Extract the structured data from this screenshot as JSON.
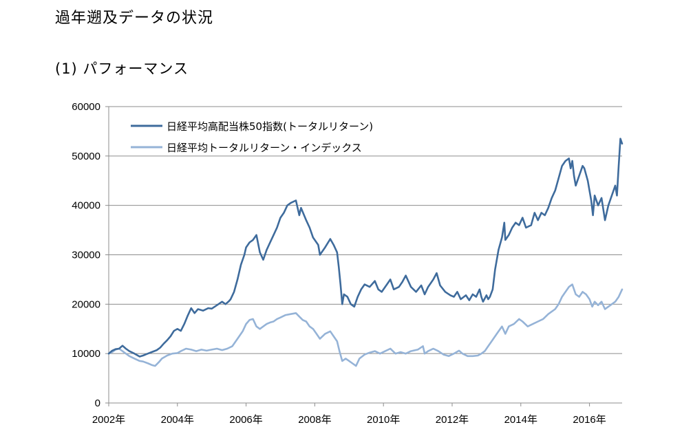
{
  "page": {
    "title": "過年遡及データの状況",
    "section": "(1) パフォーマンス"
  },
  "chart_data": {
    "type": "line",
    "title": "",
    "xlabel": "",
    "ylabel": "",
    "ylim": [
      0,
      60000
    ],
    "yticks": [
      0,
      10000,
      20000,
      30000,
      40000,
      50000,
      60000
    ],
    "xlim": [
      2002.0,
      2016.95
    ],
    "xticks": [
      2002,
      2004,
      2006,
      2008,
      2010,
      2012,
      2014,
      2016
    ],
    "xtick_labels": [
      "2002年",
      "2004年",
      "2006年",
      "2008年",
      "2010年",
      "2012年",
      "2014年",
      "2016年"
    ],
    "grid": "horizontal",
    "legend_position": "top-left",
    "series": [
      {
        "name": "日経平均高配当株50指数(トータルリターン)",
        "color": "#3e6b9c",
        "points": [
          [
            2002.0,
            10000
          ],
          [
            2002.1,
            10600
          ],
          [
            2002.2,
            10900
          ],
          [
            2002.3,
            11000
          ],
          [
            2002.4,
            11600
          ],
          [
            2002.5,
            11000
          ],
          [
            2002.6,
            10500
          ],
          [
            2002.75,
            10000
          ],
          [
            2002.9,
            9400
          ],
          [
            2003.0,
            9600
          ],
          [
            2003.1,
            9900
          ],
          [
            2003.25,
            10300
          ],
          [
            2003.4,
            10700
          ],
          [
            2003.5,
            11200
          ],
          [
            2003.6,
            12000
          ],
          [
            2003.7,
            12700
          ],
          [
            2003.8,
            13500
          ],
          [
            2003.9,
            14600
          ],
          [
            2004.0,
            15000
          ],
          [
            2004.1,
            14600
          ],
          [
            2004.2,
            16000
          ],
          [
            2004.3,
            17700
          ],
          [
            2004.4,
            19200
          ],
          [
            2004.5,
            18200
          ],
          [
            2004.6,
            19000
          ],
          [
            2004.75,
            18700
          ],
          [
            2004.9,
            19200
          ],
          [
            2005.0,
            19100
          ],
          [
            2005.15,
            19800
          ],
          [
            2005.3,
            20500
          ],
          [
            2005.4,
            20000
          ],
          [
            2005.5,
            20600
          ],
          [
            2005.55,
            21000
          ],
          [
            2005.65,
            22500
          ],
          [
            2005.75,
            25000
          ],
          [
            2005.85,
            28000
          ],
          [
            2005.95,
            30000
          ],
          [
            2006.0,
            31500
          ],
          [
            2006.1,
            32500
          ],
          [
            2006.2,
            33000
          ],
          [
            2006.3,
            34000
          ],
          [
            2006.4,
            30500
          ],
          [
            2006.5,
            29000
          ],
          [
            2006.6,
            31000
          ],
          [
            2006.7,
            32500
          ],
          [
            2006.8,
            34000
          ],
          [
            2006.9,
            35500
          ],
          [
            2007.0,
            37500
          ],
          [
            2007.1,
            38500
          ],
          [
            2007.2,
            40000
          ],
          [
            2007.3,
            40500
          ],
          [
            2007.45,
            41000
          ],
          [
            2007.55,
            38000
          ],
          [
            2007.6,
            39500
          ],
          [
            2007.75,
            37000
          ],
          [
            2007.85,
            35500
          ],
          [
            2007.95,
            33500
          ],
          [
            2008.1,
            32000
          ],
          [
            2008.15,
            30000
          ],
          [
            2008.3,
            31500
          ],
          [
            2008.45,
            33200
          ],
          [
            2008.55,
            32000
          ],
          [
            2008.65,
            30500
          ],
          [
            2008.7,
            27500
          ],
          [
            2008.75,
            24000
          ],
          [
            2008.8,
            20000
          ],
          [
            2008.85,
            22000
          ],
          [
            2008.95,
            21500
          ],
          [
            2009.05,
            20000
          ],
          [
            2009.15,
            19500
          ],
          [
            2009.25,
            21500
          ],
          [
            2009.35,
            23000
          ],
          [
            2009.45,
            24000
          ],
          [
            2009.6,
            23500
          ],
          [
            2009.75,
            24700
          ],
          [
            2009.85,
            23000
          ],
          [
            2009.95,
            22500
          ],
          [
            2010.1,
            24000
          ],
          [
            2010.2,
            25000
          ],
          [
            2010.3,
            23000
          ],
          [
            2010.45,
            23500
          ],
          [
            2010.55,
            24500
          ],
          [
            2010.65,
            25800
          ],
          [
            2010.8,
            23500
          ],
          [
            2010.95,
            22500
          ],
          [
            2011.1,
            23800
          ],
          [
            2011.2,
            22000
          ],
          [
            2011.3,
            23500
          ],
          [
            2011.45,
            25000
          ],
          [
            2011.55,
            26300
          ],
          [
            2011.65,
            23800
          ],
          [
            2011.8,
            22500
          ],
          [
            2011.95,
            21800
          ],
          [
            2012.05,
            21500
          ],
          [
            2012.15,
            22500
          ],
          [
            2012.25,
            21000
          ],
          [
            2012.4,
            21800
          ],
          [
            2012.5,
            20800
          ],
          [
            2012.6,
            22000
          ],
          [
            2012.7,
            21500
          ],
          [
            2012.8,
            23000
          ],
          [
            2012.85,
            21500
          ],
          [
            2012.9,
            20500
          ],
          [
            2013.0,
            21800
          ],
          [
            2013.05,
            21000
          ],
          [
            2013.1,
            21500
          ],
          [
            2013.18,
            23000
          ],
          [
            2013.25,
            27000
          ],
          [
            2013.35,
            31000
          ],
          [
            2013.45,
            33500
          ],
          [
            2013.52,
            36500
          ],
          [
            2013.55,
            33000
          ],
          [
            2013.65,
            34000
          ],
          [
            2013.75,
            35500
          ],
          [
            2013.85,
            36500
          ],
          [
            2013.95,
            36000
          ],
          [
            2014.05,
            37500
          ],
          [
            2014.15,
            35500
          ],
          [
            2014.3,
            36000
          ],
          [
            2014.4,
            38500
          ],
          [
            2014.5,
            37000
          ],
          [
            2014.6,
            38500
          ],
          [
            2014.7,
            38000
          ],
          [
            2014.8,
            39500
          ],
          [
            2014.9,
            41500
          ],
          [
            2015.0,
            43000
          ],
          [
            2015.1,
            45500
          ],
          [
            2015.2,
            48000
          ],
          [
            2015.3,
            49000
          ],
          [
            2015.4,
            49500
          ],
          [
            2015.45,
            47500
          ],
          [
            2015.5,
            49000
          ],
          [
            2015.55,
            46000
          ],
          [
            2015.6,
            44000
          ],
          [
            2015.7,
            46000
          ],
          [
            2015.8,
            48000
          ],
          [
            2015.85,
            47500
          ],
          [
            2015.95,
            45000
          ],
          [
            2016.05,
            41000
          ],
          [
            2016.1,
            38000
          ],
          [
            2016.15,
            42000
          ],
          [
            2016.25,
            40000
          ],
          [
            2016.35,
            41500
          ],
          [
            2016.45,
            37000
          ],
          [
            2016.55,
            40000
          ],
          [
            2016.65,
            42000
          ],
          [
            2016.75,
            44000
          ],
          [
            2016.8,
            42000
          ],
          [
            2016.85,
            48000
          ],
          [
            2016.9,
            53500
          ],
          [
            2016.95,
            52500
          ]
        ]
      },
      {
        "name": "日経平均トータルリターン・インデックス",
        "color": "#95b3d7",
        "points": [
          [
            2002.0,
            10000
          ],
          [
            2002.1,
            10300
          ],
          [
            2002.2,
            10800
          ],
          [
            2002.3,
            11000
          ],
          [
            2002.4,
            10500
          ],
          [
            2002.5,
            10000
          ],
          [
            2002.6,
            9500
          ],
          [
            2002.75,
            9000
          ],
          [
            2002.9,
            8500
          ],
          [
            2003.0,
            8400
          ],
          [
            2003.15,
            8000
          ],
          [
            2003.25,
            7700
          ],
          [
            2003.35,
            7500
          ],
          [
            2003.45,
            8200
          ],
          [
            2003.55,
            9000
          ],
          [
            2003.7,
            9600
          ],
          [
            2003.85,
            10000
          ],
          [
            2004.0,
            10100
          ],
          [
            2004.1,
            10500
          ],
          [
            2004.25,
            11000
          ],
          [
            2004.4,
            10800
          ],
          [
            2004.55,
            10500
          ],
          [
            2004.7,
            10800
          ],
          [
            2004.85,
            10600
          ],
          [
            2005.0,
            10800
          ],
          [
            2005.15,
            11000
          ],
          [
            2005.3,
            10700
          ],
          [
            2005.45,
            11000
          ],
          [
            2005.6,
            11500
          ],
          [
            2005.75,
            13000
          ],
          [
            2005.9,
            14500
          ],
          [
            2006.0,
            16000
          ],
          [
            2006.1,
            16800
          ],
          [
            2006.2,
            17000
          ],
          [
            2006.3,
            15500
          ],
          [
            2006.4,
            15000
          ],
          [
            2006.5,
            15500
          ],
          [
            2006.6,
            16000
          ],
          [
            2006.7,
            16300
          ],
          [
            2006.8,
            16500
          ],
          [
            2006.9,
            17000
          ],
          [
            2007.0,
            17300
          ],
          [
            2007.15,
            17800
          ],
          [
            2007.3,
            18000
          ],
          [
            2007.45,
            18200
          ],
          [
            2007.55,
            17500
          ],
          [
            2007.65,
            16800
          ],
          [
            2007.75,
            16500
          ],
          [
            2007.85,
            15500
          ],
          [
            2007.95,
            15000
          ],
          [
            2008.05,
            14000
          ],
          [
            2008.15,
            13000
          ],
          [
            2008.3,
            14000
          ],
          [
            2008.45,
            14500
          ],
          [
            2008.55,
            13500
          ],
          [
            2008.65,
            12500
          ],
          [
            2008.72,
            10500
          ],
          [
            2008.8,
            8500
          ],
          [
            2008.9,
            9000
          ],
          [
            2009.0,
            8500
          ],
          [
            2009.1,
            8000
          ],
          [
            2009.2,
            7500
          ],
          [
            2009.3,
            9000
          ],
          [
            2009.45,
            9800
          ],
          [
            2009.6,
            10200
          ],
          [
            2009.75,
            10500
          ],
          [
            2009.9,
            10000
          ],
          [
            2010.05,
            10500
          ],
          [
            2010.2,
            11000
          ],
          [
            2010.35,
            10000
          ],
          [
            2010.5,
            10300
          ],
          [
            2010.65,
            10000
          ],
          [
            2010.8,
            10500
          ],
          [
            2011.0,
            10800
          ],
          [
            2011.15,
            11500
          ],
          [
            2011.2,
            10000
          ],
          [
            2011.3,
            10500
          ],
          [
            2011.45,
            11000
          ],
          [
            2011.6,
            10500
          ],
          [
            2011.75,
            9800
          ],
          [
            2011.9,
            9500
          ],
          [
            2012.05,
            10000
          ],
          [
            2012.2,
            10600
          ],
          [
            2012.3,
            10000
          ],
          [
            2012.45,
            9500
          ],
          [
            2012.6,
            9500
          ],
          [
            2012.75,
            9600
          ],
          [
            2012.85,
            10000
          ],
          [
            2012.95,
            10500
          ],
          [
            2013.05,
            11500
          ],
          [
            2013.15,
            12500
          ],
          [
            2013.3,
            14000
          ],
          [
            2013.45,
            15500
          ],
          [
            2013.55,
            14000
          ],
          [
            2013.65,
            15500
          ],
          [
            2013.8,
            16000
          ],
          [
            2013.95,
            17000
          ],
          [
            2014.05,
            16500
          ],
          [
            2014.2,
            15500
          ],
          [
            2014.35,
            16000
          ],
          [
            2014.5,
            16500
          ],
          [
            2014.65,
            17000
          ],
          [
            2014.8,
            18000
          ],
          [
            2014.9,
            18500
          ],
          [
            2015.0,
            19000
          ],
          [
            2015.1,
            20000
          ],
          [
            2015.2,
            21500
          ],
          [
            2015.3,
            22500
          ],
          [
            2015.4,
            23500
          ],
          [
            2015.5,
            24000
          ],
          [
            2015.55,
            23000
          ],
          [
            2015.6,
            22000
          ],
          [
            2015.7,
            21500
          ],
          [
            2015.8,
            22500
          ],
          [
            2015.9,
            22000
          ],
          [
            2016.0,
            21000
          ],
          [
            2016.08,
            19500
          ],
          [
            2016.15,
            20500
          ],
          [
            2016.25,
            19800
          ],
          [
            2016.35,
            20500
          ],
          [
            2016.45,
            19000
          ],
          [
            2016.55,
            19500
          ],
          [
            2016.65,
            20000
          ],
          [
            2016.75,
            20500
          ],
          [
            2016.85,
            21500
          ],
          [
            2016.95,
            23000
          ]
        ]
      }
    ]
  }
}
